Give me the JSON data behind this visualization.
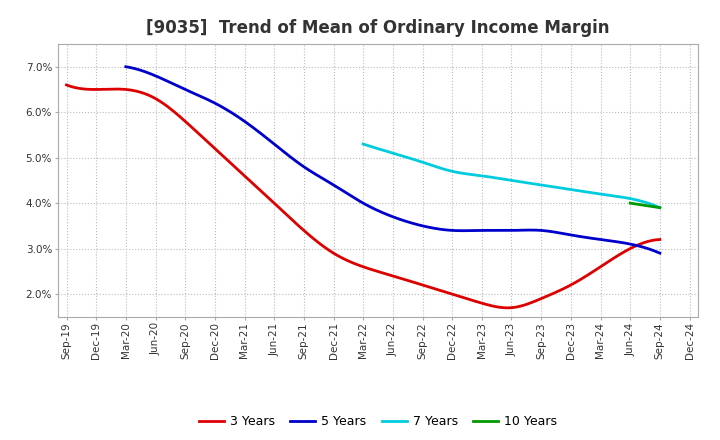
{
  "title": "[9035]  Trend of Mean of Ordinary Income Margin",
  "ylim": [
    0.015,
    0.075
  ],
  "yticks": [
    0.02,
    0.03,
    0.04,
    0.05,
    0.06,
    0.07
  ],
  "ytick_labels": [
    "2.0%",
    "3.0%",
    "4.0%",
    "5.0%",
    "6.0%",
    "7.0%"
  ],
  "background_color": "#ffffff",
  "grid_color": "#bbbbbb",
  "series": {
    "3 Years": {
      "color": "#dd0000",
      "x": [
        "Sep-19",
        "Dec-19",
        "Mar-20",
        "Jun-20",
        "Sep-20",
        "Dec-20",
        "Mar-21",
        "Jun-21",
        "Sep-21",
        "Dec-21",
        "Mar-22",
        "Jun-22",
        "Sep-22",
        "Dec-22",
        "Mar-23",
        "Jun-23",
        "Sep-23",
        "Dec-23",
        "Mar-24",
        "Jun-24",
        "Sep-24"
      ],
      "y": [
        0.066,
        0.065,
        0.065,
        0.063,
        0.058,
        0.052,
        0.046,
        0.04,
        0.034,
        0.029,
        0.026,
        0.024,
        0.022,
        0.02,
        0.018,
        0.017,
        0.019,
        0.022,
        0.026,
        0.03,
        0.032
      ]
    },
    "5 Years": {
      "color": "#0000cc",
      "x": [
        "Mar-20",
        "Jun-20",
        "Sep-20",
        "Dec-20",
        "Mar-21",
        "Jun-21",
        "Sep-21",
        "Dec-21",
        "Mar-22",
        "Jun-22",
        "Sep-22",
        "Dec-22",
        "Mar-23",
        "Jun-23",
        "Sep-23",
        "Dec-23",
        "Mar-24",
        "Jun-24",
        "Sep-24"
      ],
      "y": [
        0.07,
        0.068,
        0.065,
        0.062,
        0.058,
        0.053,
        0.048,
        0.044,
        0.04,
        0.037,
        0.035,
        0.034,
        0.034,
        0.034,
        0.034,
        0.033,
        0.032,
        0.031,
        0.029
      ]
    },
    "7 Years": {
      "color": "#00ccdd",
      "x": [
        "Mar-22",
        "Jun-22",
        "Sep-22",
        "Dec-22",
        "Mar-23",
        "Jun-23",
        "Sep-23",
        "Dec-23",
        "Mar-24",
        "Jun-24",
        "Sep-24"
      ],
      "y": [
        0.053,
        0.051,
        0.049,
        0.047,
        0.046,
        0.045,
        0.044,
        0.043,
        0.042,
        0.041,
        0.039
      ]
    },
    "10 Years": {
      "color": "#009900",
      "x": [
        "Jun-24",
        "Sep-24"
      ],
      "y": [
        0.04,
        0.039
      ]
    }
  },
  "xticks_all": [
    "Sep-19",
    "Dec-19",
    "Mar-20",
    "Jun-20",
    "Sep-20",
    "Dec-20",
    "Mar-21",
    "Jun-21",
    "Sep-21",
    "Dec-21",
    "Mar-22",
    "Jun-22",
    "Sep-22",
    "Dec-22",
    "Mar-23",
    "Jun-23",
    "Sep-23",
    "Dec-23",
    "Mar-24",
    "Jun-24",
    "Sep-24",
    "Dec-24"
  ],
  "title_fontsize": 12,
  "legend_fontsize": 9,
  "tick_fontsize": 7.5
}
